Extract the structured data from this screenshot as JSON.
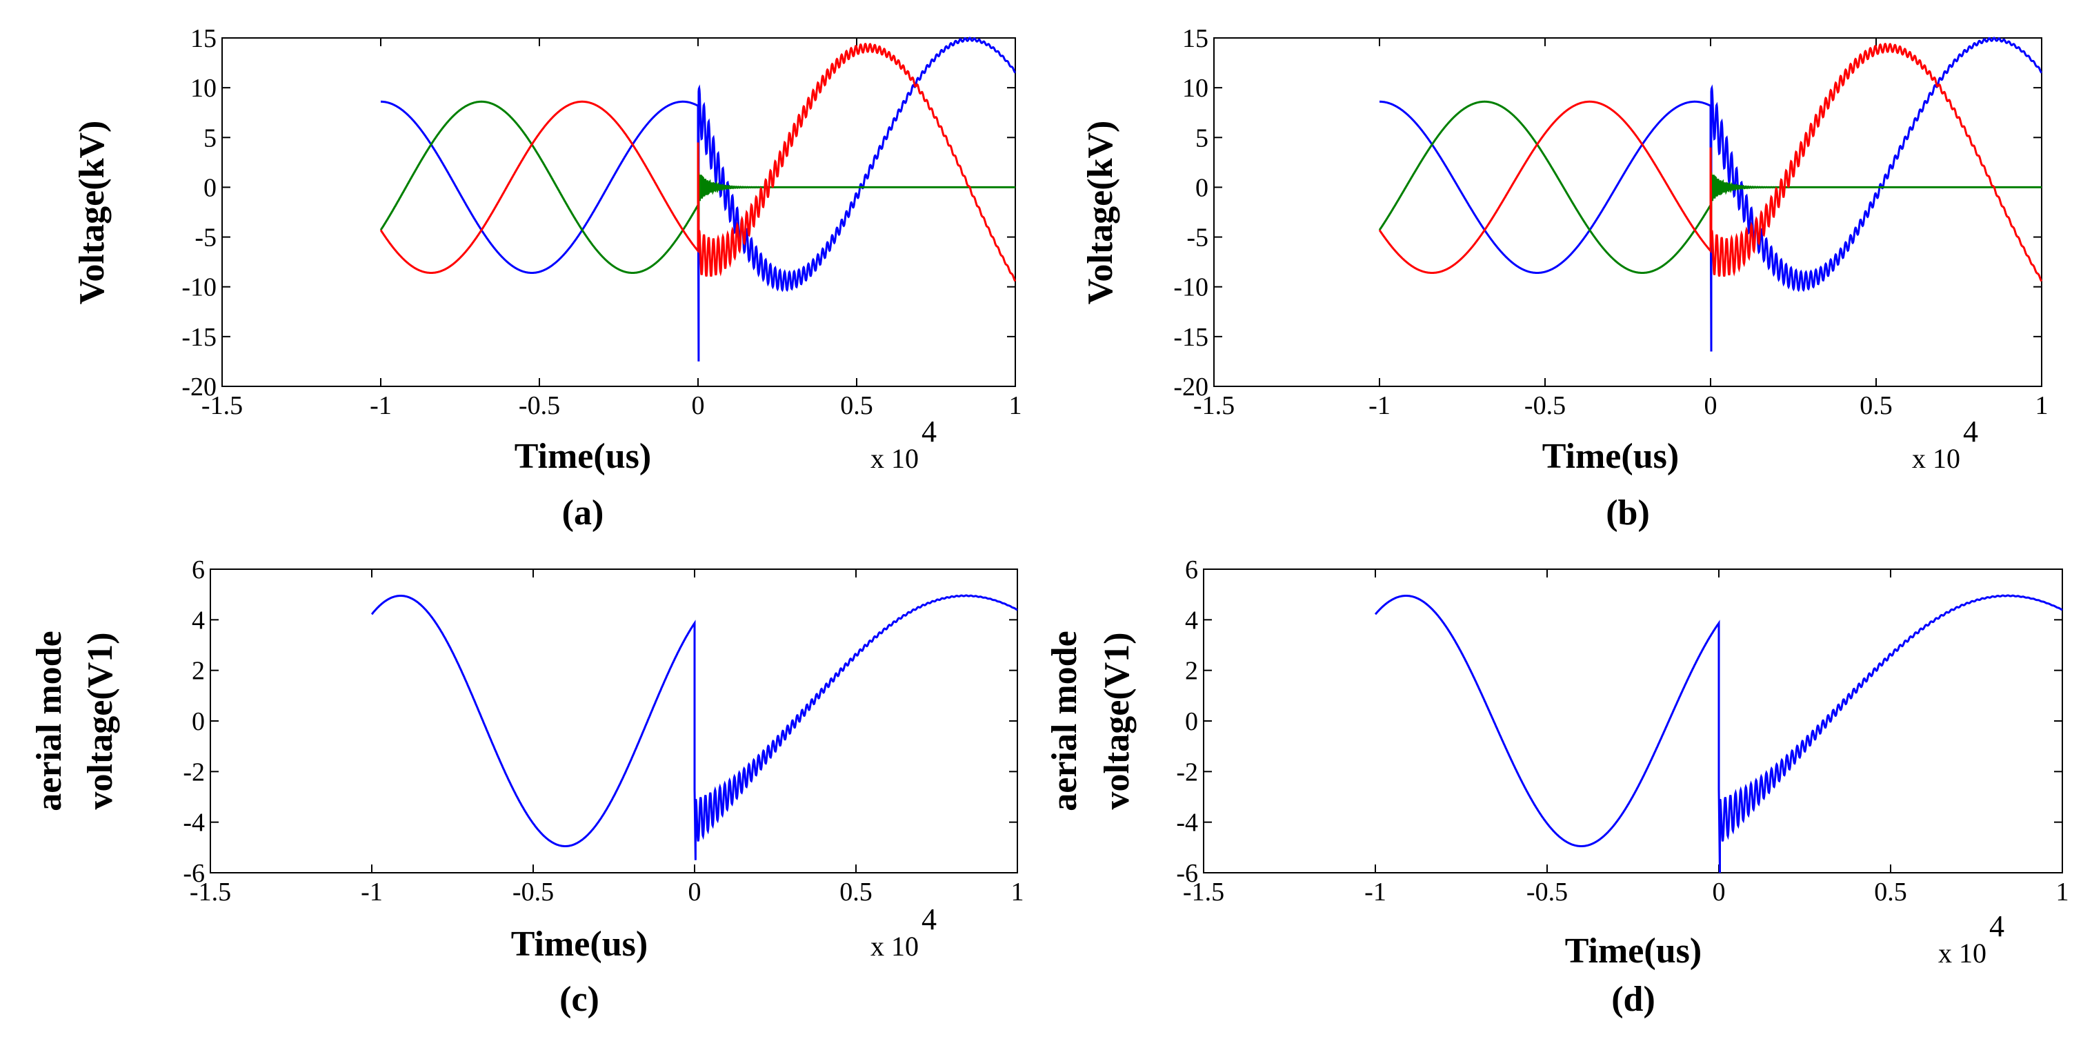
{
  "chart_data": [
    {
      "type": "line",
      "id": "a",
      "caption": "(a)",
      "xlabel": "Time(us)",
      "ylabel": "Voltage(kV)",
      "x_multiplier_prefix": "x 10",
      "x_multiplier_exp": "4",
      "xlim": [
        -1.5,
        1
      ],
      "ylim": [
        -20,
        15
      ],
      "xticks": [
        -1.5,
        -1,
        -0.5,
        0,
        0.5,
        1
      ],
      "yticks": [
        15,
        10,
        5,
        0,
        -5,
        -10,
        -15,
        -20
      ],
      "x_tick_labels": [
        "-1.5",
        "-1",
        "-0.5",
        "0",
        "0.5",
        "1"
      ],
      "y_tick_labels": [
        "15",
        "10",
        "5",
        "0",
        "-5",
        "-10",
        "-15",
        "-20"
      ],
      "pre_fault_amplitude": 8.6,
      "post_fault_amplitude": 14.9,
      "series": [
        {
          "name": "phase-blue",
          "color": "#0000ff",
          "phase_deg": 0,
          "post": "healthy",
          "spike": [
            -17.5,
            3
          ]
        },
        {
          "name": "phase-green",
          "color": "#008000",
          "phase_deg": -120,
          "post": "faulted",
          "spike": [
            -3.5,
            4.5
          ]
        },
        {
          "name": "phase-red",
          "color": "#ff0000",
          "phase_deg": 120,
          "post": "healthy",
          "spike": [
            -4.5,
            4.5
          ]
        }
      ]
    },
    {
      "type": "line",
      "id": "b",
      "caption": "(b)",
      "xlabel": "Time(us)",
      "ylabel": "Voltage(kV)",
      "x_multiplier_prefix": "x 10",
      "x_multiplier_exp": "4",
      "xlim": [
        -1.5,
        1
      ],
      "ylim": [
        -20,
        15
      ],
      "xticks": [
        -1.5,
        -1,
        -0.5,
        0,
        0.5,
        1
      ],
      "yticks": [
        15,
        10,
        5,
        0,
        -5,
        -10,
        -15,
        -20
      ],
      "x_tick_labels": [
        "-1.5",
        "-1",
        "-0.5",
        "0",
        "0.5",
        "1"
      ],
      "y_tick_labels": [
        "15",
        "10",
        "5",
        "0",
        "-5",
        "-10",
        "-15",
        "-20"
      ],
      "pre_fault_amplitude": 8.6,
      "post_fault_amplitude": 14.9,
      "series": [
        {
          "name": "phase-blue",
          "color": "#0000ff",
          "phase_deg": 0,
          "post": "healthy",
          "spike": [
            -16.5,
            3
          ]
        },
        {
          "name": "phase-green",
          "color": "#008000",
          "phase_deg": -120,
          "post": "faulted",
          "spike": [
            -3.3,
            4
          ]
        },
        {
          "name": "phase-red",
          "color": "#ff0000",
          "phase_deg": 120,
          "post": "healthy",
          "spike": [
            -3.5,
            4
          ]
        }
      ]
    },
    {
      "type": "line",
      "id": "c",
      "caption": "(c)",
      "xlabel": "Time(us)",
      "ylabel_line1": "aerial mode",
      "ylabel_line2": "voltage(V1)",
      "x_multiplier_prefix": "x 10",
      "x_multiplier_exp": "4",
      "xlim": [
        -1.5,
        1
      ],
      "ylim": [
        -6,
        6
      ],
      "xticks": [
        -1.5,
        -1,
        -0.5,
        0,
        0.5,
        1
      ],
      "yticks": [
        6,
        4,
        2,
        0,
        -2,
        -4,
        -6
      ],
      "x_tick_labels": [
        "-1.5",
        "-1",
        "-0.5",
        "0",
        "0.5",
        "1"
      ],
      "y_tick_labels": [
        "6",
        "4",
        "2",
        "0",
        "-2",
        "-4",
        "-6"
      ],
      "amplitude": 4.95,
      "series": [
        {
          "name": "aerial-mode",
          "color": "#0000ff",
          "start_value": 4.3,
          "min_value": -4.95,
          "max_value": 4.95,
          "end_value": 4.3,
          "spike": [
            -5.5,
            -2.7
          ]
        }
      ]
    },
    {
      "type": "line",
      "id": "d",
      "caption": "(d)",
      "xlabel": "Time(us)",
      "ylabel_line1": "aerial mode",
      "ylabel_line2": "voltage(V1)",
      "x_multiplier_prefix": "x 10",
      "x_multiplier_exp": "4",
      "xlim": [
        -1.5,
        1
      ],
      "ylim": [
        -6,
        6
      ],
      "xticks": [
        -1.5,
        -1,
        -0.5,
        0,
        0.5,
        1
      ],
      "yticks": [
        6,
        4,
        2,
        0,
        -2,
        -4,
        -6
      ],
      "x_tick_labels": [
        "-1.5",
        "-1",
        "-0.5",
        "0",
        "0.5",
        "1"
      ],
      "y_tick_labels": [
        "6",
        "4",
        "2",
        "0",
        "-2",
        "-4",
        "-6"
      ],
      "amplitude": 4.95,
      "series": [
        {
          "name": "aerial-mode",
          "color": "#0000ff",
          "start_value": 4.3,
          "min_value": -4.95,
          "max_value": 4.95,
          "end_value": 4.3,
          "spike": [
            -6,
            -2.7
          ]
        }
      ]
    }
  ]
}
